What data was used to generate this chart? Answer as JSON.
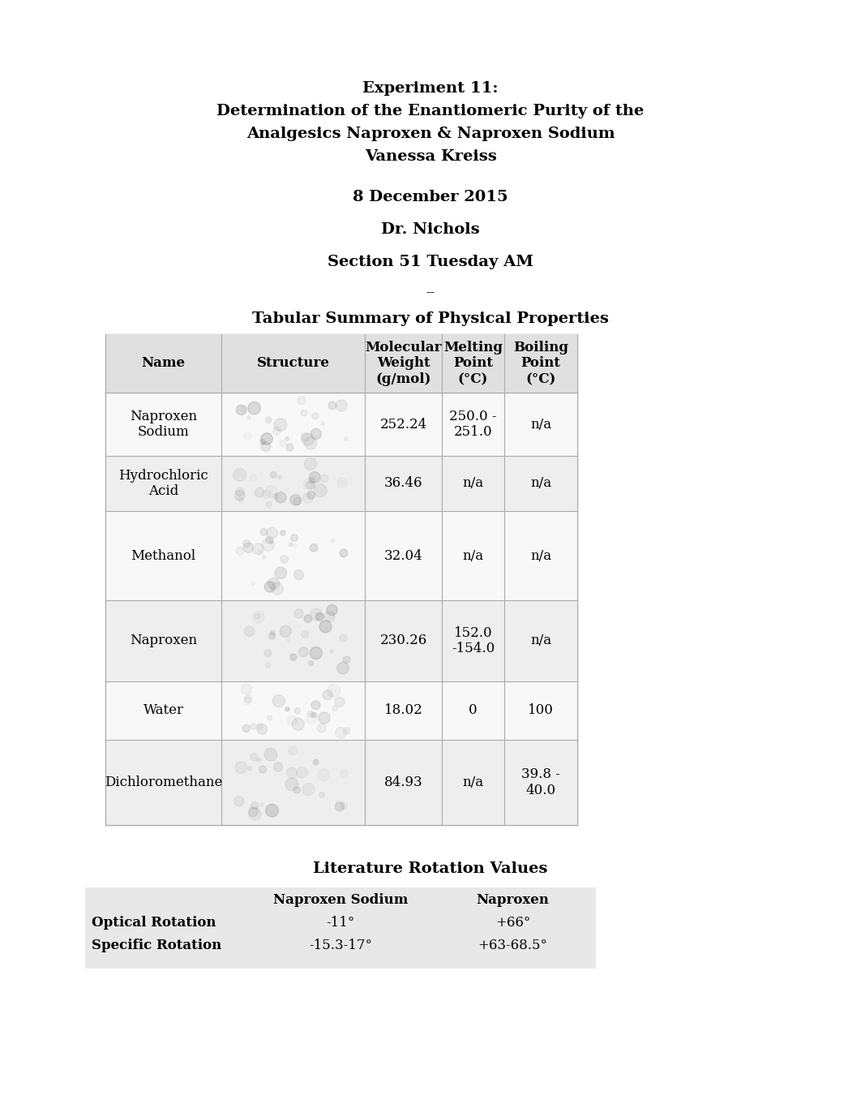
{
  "title_lines": [
    "Experiment 11:",
    "Determination of the Enantiomeric Purity of the",
    "Analgesics Naproxen & Naproxen Sodium",
    "Vanessa Kreiss"
  ],
  "date": "8 December 2015",
  "instructor": "Dr. Nichols",
  "section": "Section 51 Tuesday AM",
  "separator": "--",
  "table_title": "Tabular Summary of Physical Properties",
  "table_headers": [
    "Name",
    "Structure",
    "Molecular\nWeight\n(g/mol)",
    "Melting\nPoint\n(°C)",
    "Boiling\nPoint\n(°C)"
  ],
  "table_rows": [
    [
      "Naproxen\nSodium",
      "struct",
      "252.24",
      "250.0 -\n251.0",
      "n/a"
    ],
    [
      "Hydrochloric\nAcid",
      "struct",
      "36.46",
      "n/a",
      "n/a"
    ],
    [
      "Methanol",
      "struct",
      "32.04",
      "n/a",
      "n/a"
    ],
    [
      "Naproxen",
      "struct",
      "230.26",
      "152.0\n-154.0",
      "n/a"
    ],
    [
      "Water",
      "struct",
      "18.02",
      "0",
      "100"
    ],
    [
      "Dichloromethane",
      "struct",
      "84.93",
      "n/a",
      "39.8 -\n40.0"
    ]
  ],
  "lit_title": "Literature Rotation Values",
  "lit_col1": "Naproxen Sodium",
  "lit_col2": "Naproxen",
  "lit_row1_label": "Optical Rotation",
  "lit_row1_val1": "-11°",
  "lit_row1_val2": "+66°",
  "lit_row2_label": "Specific Rotation",
  "lit_row2_val1": "-15.3-17°",
  "lit_row2_val2": "+63-68.5°",
  "bg_color": "#ffffff",
  "table_bg": "#e8e8e8",
  "lit_bg": "#e8e8e8",
  "font_color": "#000000",
  "title_fontsize": 14,
  "body_fontsize": 12,
  "header_fontsize": 12
}
